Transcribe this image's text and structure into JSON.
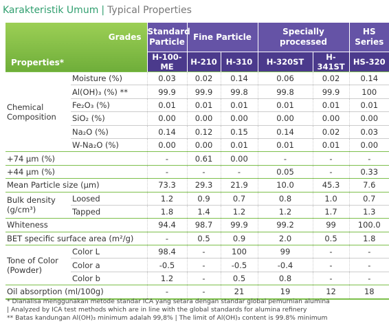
{
  "header": {
    "title": "Karakteristik Umum",
    "subtitle": "Typical Properties"
  },
  "table": {
    "corner_top": "Grades",
    "corner_bottom": "Properties*",
    "grade_groups": [
      {
        "label": "Standard Particle",
        "grades": [
          "H-100-ME"
        ]
      },
      {
        "label": "Fine Particle",
        "grades": [
          "H-210",
          "H-310"
        ]
      },
      {
        "label": "Specially processed",
        "grades": [
          "H-320ST",
          "H-341ST"
        ]
      },
      {
        "label": "HS Series",
        "grades": [
          "HS-320"
        ]
      }
    ],
    "body": [
      {
        "group": "Chemical Composition",
        "rows": [
          {
            "label": "Moisture (%)",
            "values": [
              "0.03",
              "0.02",
              "0.14",
              "0.06",
              "0.02",
              "0.14"
            ]
          },
          {
            "label": "Al(OH)₃ (%) **",
            "values": [
              "99.9",
              "99.9",
              "99.8",
              "99.8",
              "99.9",
              "100"
            ]
          },
          {
            "label": "Fe₂O₃ (%)",
            "values": [
              "0.01",
              "0.01",
              "0.01",
              "0.01",
              "0.01",
              "0.01"
            ]
          },
          {
            "label": "SiO₂ (%)",
            "values": [
              "0.00",
              "0.00",
              "0.00",
              "0.00",
              "0.00",
              "0.00"
            ]
          },
          {
            "label": "Na₂O (%)",
            "values": [
              "0.14",
              "0.12",
              "0.15",
              "0.14",
              "0.02",
              "0.03"
            ]
          },
          {
            "label": "W-Na₂O (%)",
            "values": [
              "0.00",
              "0.00",
              "0.01",
              "0.01",
              "0.01",
              "0.00"
            ]
          }
        ]
      },
      {
        "label": "+74 µm (%)",
        "values": [
          "-",
          "0.61",
          "0.00",
          "-",
          "-",
          "-"
        ]
      },
      {
        "label": "+44 µm (%)",
        "values": [
          "-",
          "-",
          "-",
          "0.05",
          "-",
          "0.33"
        ]
      },
      {
        "label": "Mean Particle size (µm)",
        "values": [
          "73.3",
          "29.3",
          "21.9",
          "10.0",
          "45.3",
          "7.6"
        ]
      },
      {
        "group": "Bulk density (g/cm³)",
        "rows": [
          {
            "label": "Loosed",
            "values": [
              "1.2",
              "0.9",
              "0.7",
              "0.8",
              "1.0",
              "0.7"
            ]
          },
          {
            "label": "Tapped",
            "values": [
              "1.8",
              "1.4",
              "1.2",
              "1.2",
              "1.7",
              "1.3"
            ]
          }
        ]
      },
      {
        "label": "Whiteness",
        "values": [
          "94.4",
          "98.7",
          "99.9",
          "99.2",
          "99",
          "100.0"
        ]
      },
      {
        "label": "BET specific surface area (m²/g)",
        "values": [
          "-",
          "0.5",
          "0.9",
          "2.0",
          "0.5",
          "1.8"
        ]
      },
      {
        "group": "Tone of Color (Powder)",
        "rows": [
          {
            "label": "Color L",
            "values": [
              "98.4",
              "-",
              "100",
              "99",
              "-",
              "-"
            ]
          },
          {
            "label": "Color a",
            "values": [
              "-0.5",
              "-",
              "-0.5",
              "-0.4",
              "-",
              "-"
            ]
          },
          {
            "label": "Color b",
            "values": [
              "1.2",
              "-",
              "0.5",
              "0.8",
              "-",
              "-"
            ]
          }
        ]
      },
      {
        "label": "Oil absorption (ml/100g)",
        "values": [
          "-",
          "-",
          "21",
          "19",
          "12",
          "18"
        ]
      }
    ]
  },
  "footnotes": [
    "* Dianalisa menggunakan metode standar ICA yang setara dengan standar global pemurnian alumina",
    "| Analyzed by ICA test methods which are in line with the global standards for alumina refinery",
    "** Batas kandungan Al(OH)₃ minimum adalah 99,8% | The limit of Al(OH)₃ content is 99.8% minimum"
  ]
}
